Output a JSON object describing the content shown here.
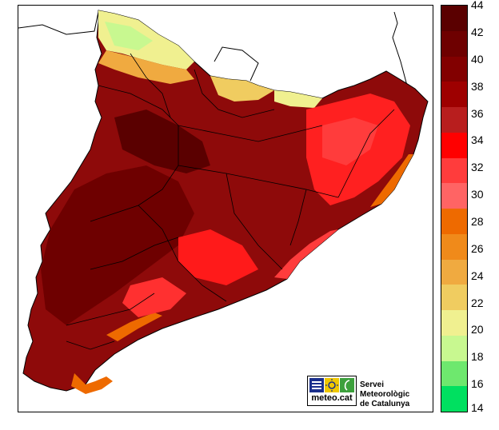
{
  "map": {
    "region": "Catalunya",
    "variable_shown": "temperature field by color scale",
    "color_scale": {
      "min": 14,
      "max": 44,
      "step": 2,
      "tick_labels": [
        "44",
        "42",
        "40",
        "38",
        "36",
        "34",
        "32",
        "30",
        "28",
        "26",
        "24",
        "22",
        "20",
        "18",
        "16",
        "14"
      ],
      "band_colors_top_to_bottom": [
        "#5a0000",
        "#6e0000",
        "#820000",
        "#9e0000",
        "#b81e1e",
        "#ff0000",
        "#ff3c3c",
        "#ff6464",
        "#ee6a00",
        "#f08a1a",
        "#f0aa40",
        "#f0cc60",
        "#f0f090",
        "#c8f890",
        "#6ee86e",
        "#00e060"
      ]
    }
  },
  "logo": {
    "text": "meteo.cat",
    "org_line1": "Servei Meteorològic",
    "org_line2": "de Catalunya",
    "colors": {
      "blue": "#1a2f8c",
      "yellow": "#f0c800",
      "green": "#3ca03c"
    }
  },
  "icons": [
    "sun-icon",
    "stripes-icon",
    "wave-icon"
  ]
}
